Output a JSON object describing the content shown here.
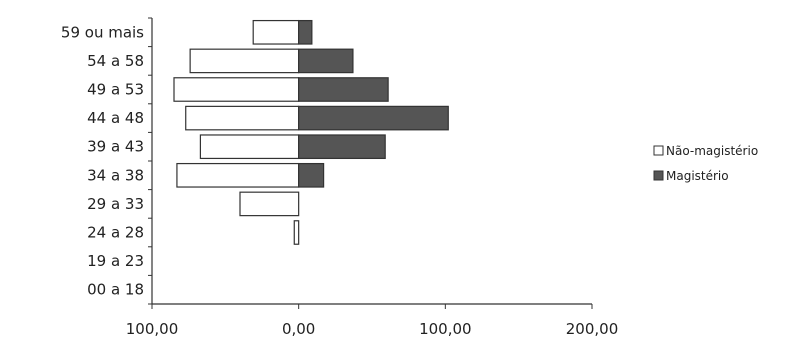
{
  "chart_data": {
    "type": "bar",
    "orientation": "horizontal",
    "stacking": "diverging",
    "categories": [
      "00 a 18",
      "19 a 23",
      "24 a 28",
      "29 a 33",
      "34 a 38",
      "39 a 43",
      "44 a 48",
      "49 a 53",
      "54 a 58",
      "59 ou mais"
    ],
    "series": [
      {
        "name": "Não-magistério",
        "values": [
          0,
          0,
          -3,
          -40,
          -83,
          -67,
          -77,
          -85,
          -74,
          -31
        ],
        "fill": "#ffffff",
        "stroke": "#333333"
      },
      {
        "name": "Magistério",
        "values": [
          0,
          0,
          0,
          0,
          17,
          59,
          102,
          61,
          37,
          9
        ],
        "fill": "#555555",
        "stroke": "#333333"
      }
    ],
    "xticks": [
      "100,00",
      "0,00",
      "100,00",
      "200,00"
    ],
    "xlim": [
      -100,
      200
    ],
    "title": "",
    "xlabel": "",
    "ylabel": "",
    "legend_position": "right",
    "grid": false
  }
}
